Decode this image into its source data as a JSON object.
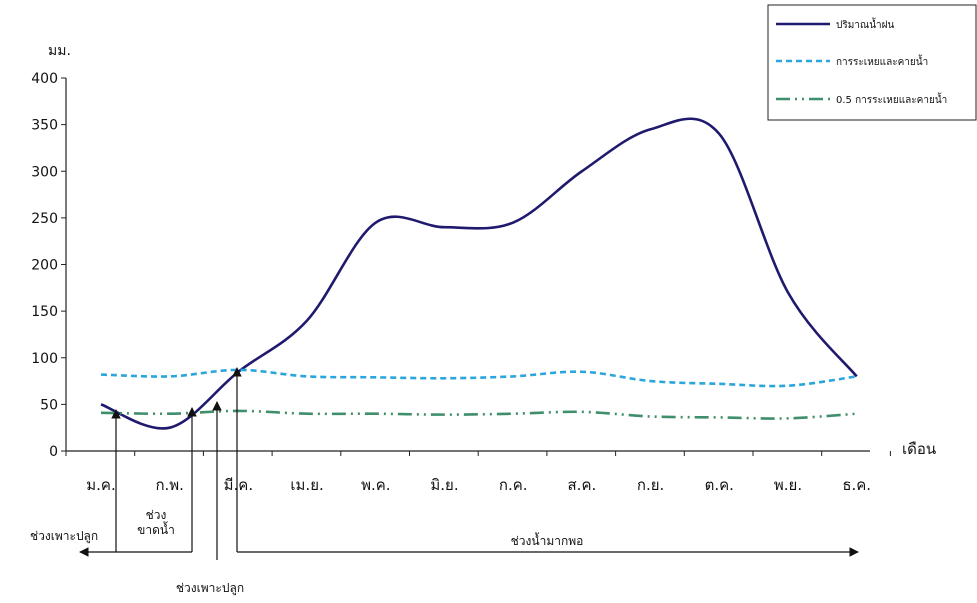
{
  "chart_data": {
    "type": "line",
    "ylabel": "มม.",
    "xlabel": "เดือน",
    "ylim": [
      0,
      400
    ],
    "yticks": [
      0,
      50,
      100,
      150,
      200,
      250,
      300,
      350,
      400
    ],
    "categories": [
      "ม.ค.",
      "ก.พ.",
      "มี.ค.",
      "เม.ย.",
      "พ.ค.",
      "มิ.ย.",
      "ก.ค.",
      "ส.ค.",
      "ก.ย.",
      "ต.ค.",
      "พ.ย.",
      "ธ.ค."
    ],
    "grid": false,
    "legend_position": "top-right",
    "series": [
      {
        "name": "ปริมาณน้ำฝน",
        "style": "solid",
        "color": "#1f1a6e",
        "values": [
          50,
          25,
          85,
          140,
          245,
          240,
          245,
          300,
          345,
          340,
          170,
          80
        ]
      },
      {
        "name": "การระเหยและคายน้ำ",
        "style": "dashed",
        "color": "#2aa6dc",
        "values": [
          82,
          80,
          87,
          80,
          79,
          78,
          80,
          85,
          75,
          72,
          70,
          80
        ]
      },
      {
        "name": "0.5 การระเหยและคายน้ำ",
        "style": "dashdot",
        "color": "#3f8f6a",
        "values": [
          41,
          40,
          43,
          40,
          40,
          39,
          40,
          42,
          37,
          36,
          35,
          40
        ]
      }
    ],
    "annotations": [
      {
        "id": "dry1",
        "text": "ช่วงเพาะปลูก"
      },
      {
        "id": "dry2a",
        "text": "ช่วง"
      },
      {
        "id": "dry2b",
        "text": "ขาดน้ำ"
      },
      {
        "id": "wet",
        "text": "ช่วงน้ำมากพอ"
      },
      {
        "id": "plant2",
        "text": "ช่วงเพาะปลูก"
      }
    ]
  }
}
